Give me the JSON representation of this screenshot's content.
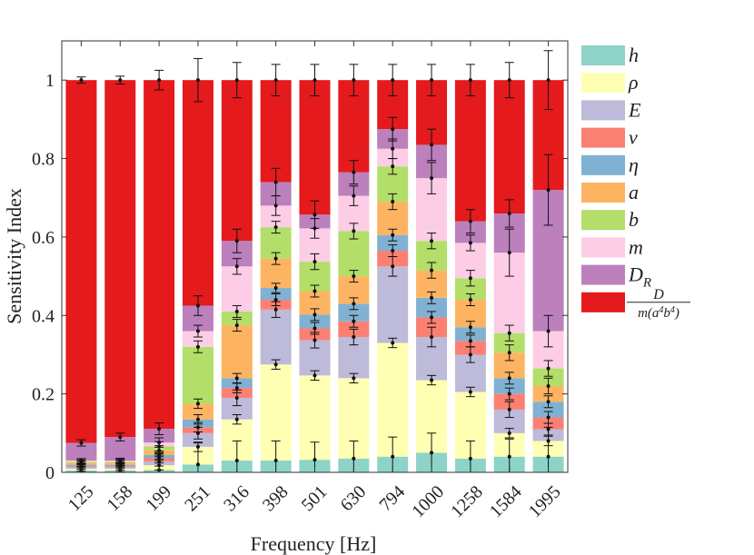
{
  "chart_data": {
    "type": "bar",
    "stacked": true,
    "title": "",
    "xlabel": "Frequency [Hz]",
    "ylabel": "Sensitivity Index",
    "ylim": [
      0,
      1.1
    ],
    "yticks": [
      0,
      0.2,
      0.4,
      0.6,
      0.8,
      1
    ],
    "ytick_labels": [
      "0",
      "0.2",
      "0.4",
      "0.6",
      "0.8",
      "1"
    ],
    "categories": [
      "125",
      "158",
      "199",
      "251",
      "316",
      "398",
      "501",
      "630",
      "794",
      "1000",
      "1258",
      "1584",
      "1995"
    ],
    "legend_position": "outside-right",
    "series": [
      {
        "name": "h",
        "color": "#8dd3c7",
        "values": [
          0.005,
          0.005,
          0.006,
          0.02,
          0.03,
          0.03,
          0.032,
          0.035,
          0.04,
          0.05,
          0.035,
          0.04,
          0.04
        ]
      },
      {
        "name": "ρ",
        "color": "#ffffb3",
        "values": [
          0.004,
          0.004,
          0.012,
          0.045,
          0.105,
          0.245,
          0.215,
          0.205,
          0.29,
          0.185,
          0.17,
          0.06,
          0.04
        ]
      },
      {
        "name": "E",
        "color": "#bebada",
        "values": [
          0.005,
          0.005,
          0.01,
          0.035,
          0.055,
          0.14,
          0.09,
          0.105,
          0.195,
          0.11,
          0.095,
          0.06,
          0.03
        ]
      },
      {
        "name": "ν",
        "color": "#fb8072",
        "values": [
          0.003,
          0.003,
          0.008,
          0.015,
          0.025,
          0.025,
          0.03,
          0.04,
          0.04,
          0.05,
          0.035,
          0.04,
          0.03
        ]
      },
      {
        "name": "η",
        "color": "#80b1d3",
        "values": [
          0.003,
          0.003,
          0.008,
          0.02,
          0.025,
          0.03,
          0.035,
          0.045,
          0.04,
          0.05,
          0.035,
          0.04,
          0.04
        ]
      },
      {
        "name": "a",
        "color": "#fdb462",
        "values": [
          0.004,
          0.004,
          0.012,
          0.04,
          0.135,
          0.075,
          0.06,
          0.07,
          0.085,
          0.07,
          0.07,
          0.065,
          0.04
        ]
      },
      {
        "name": "b",
        "color": "#b3de69",
        "values": [
          0.003,
          0.003,
          0.01,
          0.145,
          0.035,
          0.08,
          0.075,
          0.115,
          0.09,
          0.075,
          0.055,
          0.05,
          0.045
        ]
      },
      {
        "name": "m",
        "color": "#fccde5",
        "values": [
          0.003,
          0.003,
          0.01,
          0.04,
          0.115,
          0.055,
          0.085,
          0.09,
          0.045,
          0.16,
          0.09,
          0.205,
          0.095
        ]
      },
      {
        "name": "D_R",
        "color": "#bc80bd",
        "values": [
          0.045,
          0.06,
          0.035,
          0.065,
          0.065,
          0.06,
          0.035,
          0.06,
          0.05,
          0.085,
          0.055,
          0.1,
          0.36
        ]
      },
      {
        "name": "D/(m(a^4 b^4))",
        "color": "#e41a1c",
        "values": [
          0.925,
          0.91,
          0.889,
          0.575,
          0.41,
          0.26,
          0.343,
          0.235,
          0.125,
          0.165,
          0.36,
          0.34,
          0.28
        ]
      }
    ],
    "error_bars": [
      [
        0.014,
        0.026,
        0.044,
        0.055,
        0.05,
        0.05,
        0.045,
        0.045,
        0.05,
        0.05,
        0.045,
        0.045,
        0.075
      ],
      [
        0.006,
        0.008,
        0.012,
        0.012,
        0.012,
        0.012,
        0.012,
        0.012,
        0.012,
        0.012,
        0.012,
        0.012,
        0.012
      ],
      [
        0.006,
        0.008,
        0.012,
        0.015,
        0.02,
        0.02,
        0.02,
        0.02,
        0.025,
        0.025,
        0.02,
        0.02,
        0.015
      ],
      [
        0.005,
        0.006,
        0.012,
        0.012,
        0.012,
        0.015,
        0.015,
        0.015,
        0.015,
        0.015,
        0.015,
        0.015,
        0.015
      ],
      [
        0.005,
        0.006,
        0.01,
        0.012,
        0.012,
        0.012,
        0.015,
        0.015,
        0.015,
        0.015,
        0.015,
        0.015,
        0.015
      ],
      [
        0.005,
        0.006,
        0.012,
        0.012,
        0.015,
        0.015,
        0.015,
        0.015,
        0.02,
        0.02,
        0.015,
        0.02,
        0.02
      ],
      [
        0.005,
        0.006,
        0.012,
        0.015,
        0.015,
        0.015,
        0.02,
        0.02,
        0.02,
        0.02,
        0.02,
        0.02,
        0.02
      ],
      [
        0.005,
        0.006,
        0.012,
        0.015,
        0.02,
        0.025,
        0.025,
        0.025,
        0.025,
        0.04,
        0.02,
        0.06,
        0.04
      ],
      [
        0.008,
        0.01,
        0.015,
        0.025,
        0.03,
        0.035,
        0.035,
        0.03,
        0.03,
        0.04,
        0.03,
        0.035,
        0.09
      ],
      [
        0.008,
        0.01,
        0.025,
        0.055,
        0.045,
        0.04,
        0.04,
        0.04,
        0.04,
        0.04,
        0.04,
        0.045,
        0.075
      ]
    ]
  }
}
